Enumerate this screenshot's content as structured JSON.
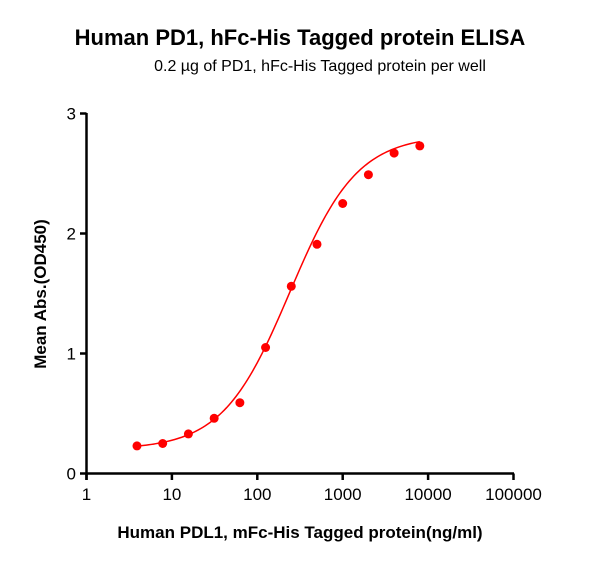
{
  "chart_data": {
    "type": "scatter",
    "title": "Human PD1, hFc-His Tagged protein ELISA",
    "subtitle": "0.2 µg of PD1, hFc-His Tagged protein per well",
    "xlabel": "Human PDL1, mFc-His Tagged protein(ng/ml)",
    "ylabel": "Mean Abs.(OD450)",
    "xscale": "log",
    "xlim": [
      1,
      100000
    ],
    "ylim": [
      0,
      3
    ],
    "x_ticks": [
      "1",
      "10",
      "100",
      "1000",
      "10000",
      "100000"
    ],
    "y_ticks": [
      "0",
      "1",
      "2",
      "3"
    ],
    "grid": false,
    "legend": null,
    "series": [
      {
        "name": "Human PDL1, mFc-His Tagged protein",
        "color": "#ff0000",
        "marker": "circle",
        "x": [
          3.9,
          7.8,
          15.6,
          31.25,
          62.5,
          125,
          250,
          500,
          1000,
          2000,
          4000,
          8000
        ],
        "y": [
          0.23,
          0.25,
          0.33,
          0.46,
          0.59,
          1.05,
          1.56,
          1.91,
          2.25,
          2.49,
          2.67,
          2.73
        ],
        "fit": {
          "model": "4PL",
          "bottom": 0.2,
          "top": 2.82,
          "ec50": 240,
          "hill": 1.1
        }
      }
    ]
  }
}
